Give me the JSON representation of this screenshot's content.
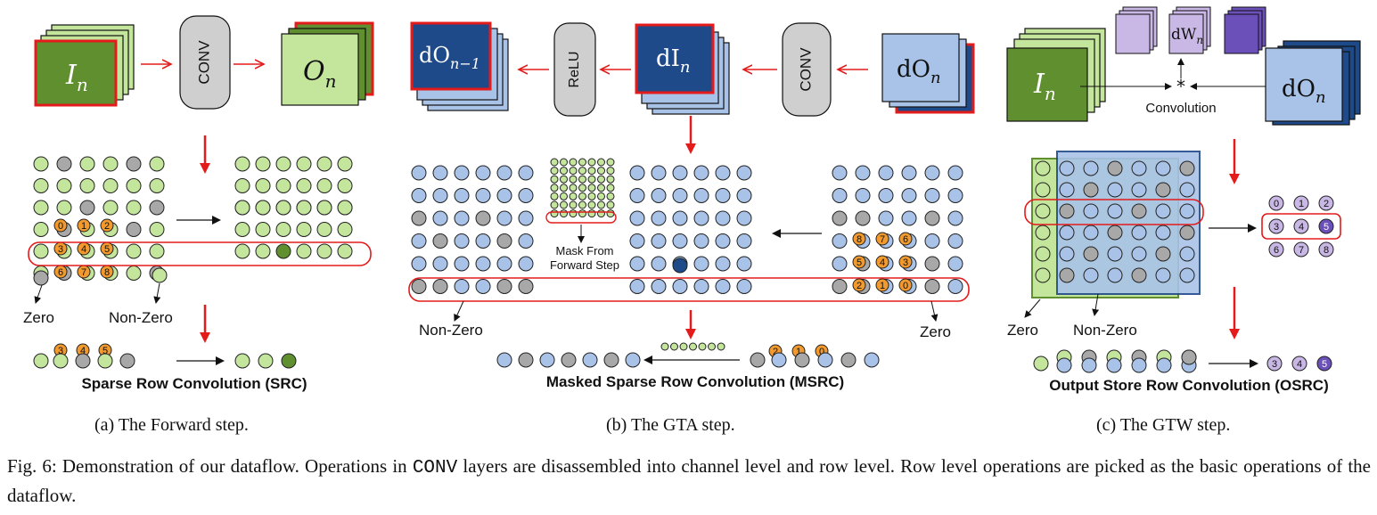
{
  "forward": {
    "input_label": "I",
    "input_sub": "n",
    "conv_label": "CONV",
    "output_label": "O",
    "output_sub": "n",
    "zero_label": "Zero",
    "nonzero_label": "Non-Zero",
    "numbers_top": [
      "0",
      "1",
      "2"
    ],
    "numbers_mid": [
      "3",
      "4",
      "5"
    ],
    "numbers_bot": [
      "6",
      "7",
      "8"
    ],
    "title": "Sparse Row Convolution (SRC)",
    "caption": "(a) The Forward step."
  },
  "gta": {
    "dO_label": "dO",
    "dO_sub": "n",
    "conv_label": "CONV",
    "dI_label": "dI",
    "dI_sub": "n",
    "relu_label": "ReLU",
    "dOprev_label": "dO",
    "dOprev_sub": "n−1",
    "mask_label_1": "Mask From",
    "mask_label_2": "Forward Step",
    "nonzero_label": "Non-Zero",
    "zero_label": "Zero",
    "numbers_r1": [
      "8",
      "7",
      "6"
    ],
    "numbers_r2": [
      "5",
      "4",
      "3"
    ],
    "numbers_r3": [
      "2",
      "1",
      "0"
    ],
    "title": "Masked Sparse Row Convolution (MSRC)",
    "caption": "(b) The GTA step."
  },
  "gtw": {
    "dW_label": "dW",
    "dW_sub": "n",
    "input_label": "I",
    "input_sub": "n",
    "dO_label": "dO",
    "dO_sub": "n",
    "conv_op_label": "Convolution",
    "star_symbol": "*",
    "zero_label": "Zero",
    "nonzero_label": "Non-Zero",
    "numbers": [
      "0",
      "1",
      "2",
      "3",
      "4",
      "5",
      "6",
      "7",
      "8"
    ],
    "title": "Output Store Row Convolution (OSRC)",
    "caption": "(c) The GTW step."
  },
  "figure": {
    "caption_prefix": "Fig. 6: Demonstration of our dataflow. Operations in ",
    "caption_code": "CONV",
    "caption_suffix": " layers are disassembled into channel level and row level. Row level operations are picked as the basic operations of the dataflow."
  },
  "colors": {
    "light_green": "#c3e59c",
    "dark_green": "#5f8f2f",
    "gray": "#a8a8a8",
    "light_blue": "#a9c3e8",
    "dark_blue": "#1f4a8a",
    "orange": "#f29a2e",
    "red": "#e31b1b",
    "light_purple": "#c9b8e6",
    "dark_purple": "#6a50b8"
  }
}
